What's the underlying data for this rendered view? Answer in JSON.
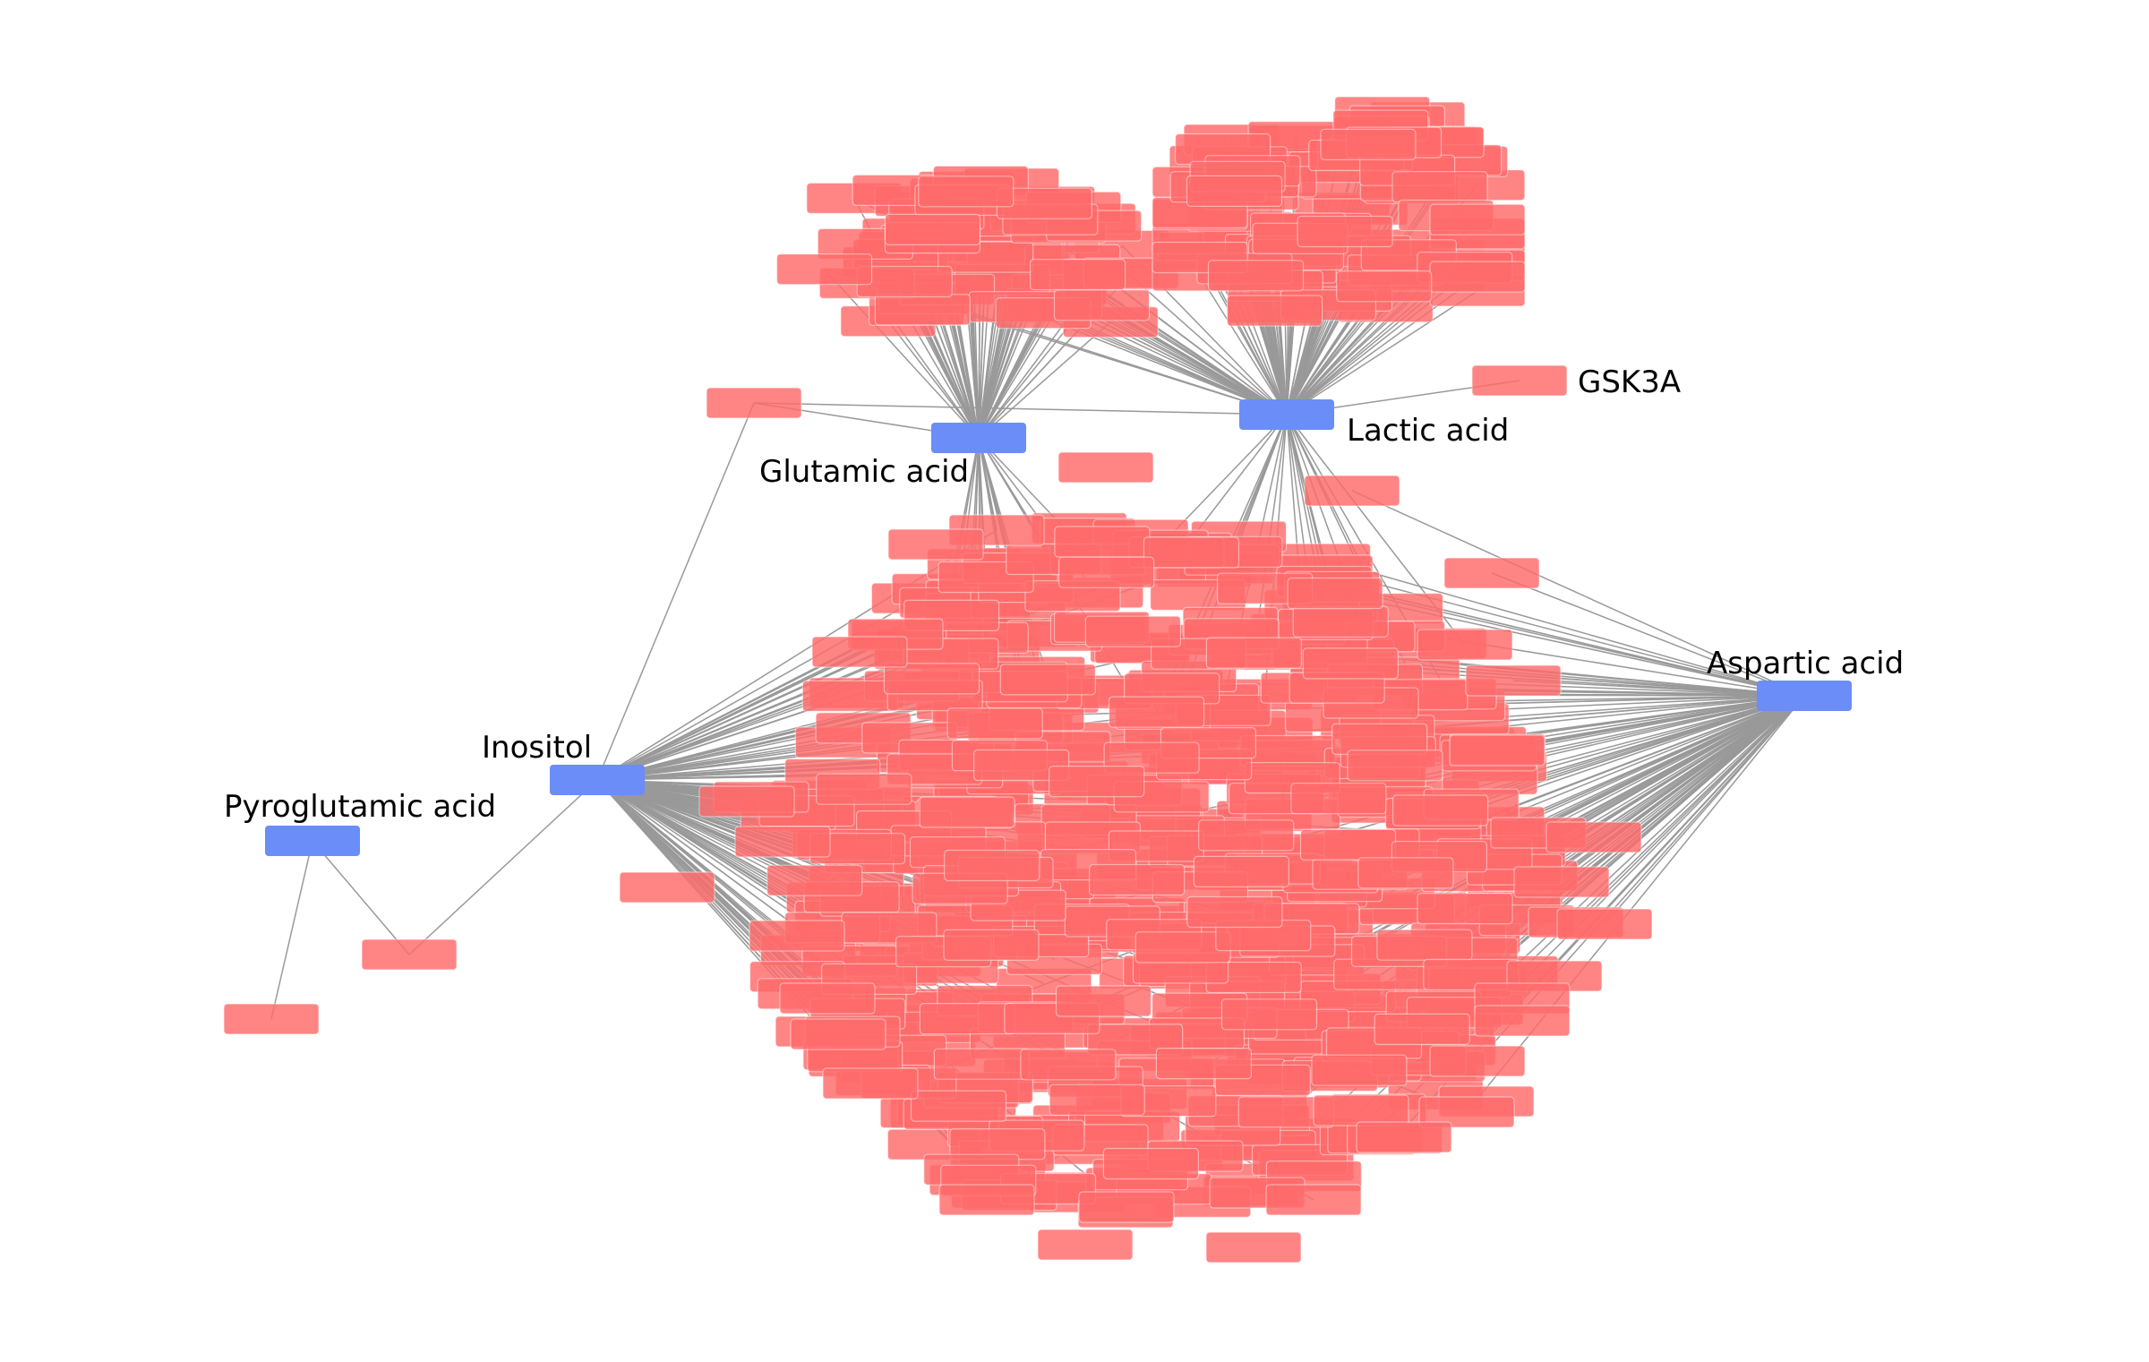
{
  "network": {
    "legend": [],
    "metabolites": [
      {
        "id": "glutamic",
        "label": "Glutamic acid"
      },
      {
        "id": "lactic",
        "label": "Lactic acid"
      },
      {
        "id": "aspartic",
        "label": "Aspartic acid"
      },
      {
        "id": "inositol",
        "label": "Inositol"
      },
      {
        "id": "pyroglutamic",
        "label": "Pyroglutamic acid"
      }
    ],
    "labeled_genes": [
      {
        "id": "gsk3a",
        "label": "GSK3A"
      }
    ],
    "colors": {
      "metabolite_node": "#6b8df8",
      "gene_node": "#ff6b6b",
      "edge": "#999999",
      "label": "#000000",
      "background": "#ffffff"
    },
    "edges": [
      {
        "from": "pyroglutamic",
        "to": "gene-pyro-1"
      },
      {
        "from": "pyroglutamic",
        "to": "gene-pyro-2"
      },
      {
        "from": "inositol",
        "to": "gene-pyro-2"
      },
      {
        "from": "inositol",
        "to": "gene-bridge"
      },
      {
        "from": "glutamic",
        "to": "gene-bridge"
      },
      {
        "from": "lactic",
        "to": "gene-bridge"
      },
      {
        "from": "lactic",
        "to": "gsk3a"
      }
    ]
  }
}
